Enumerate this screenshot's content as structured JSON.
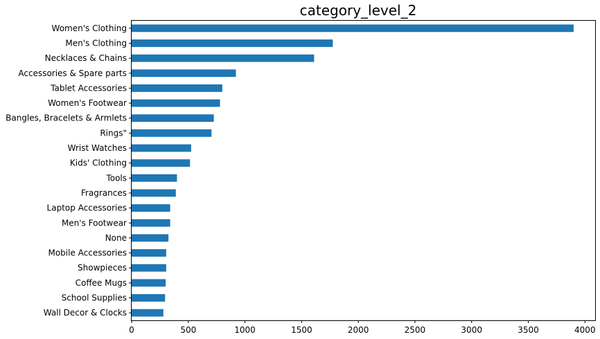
{
  "chart_data": {
    "type": "bar",
    "orientation": "horizontal",
    "title": "category_level_2",
    "xlabel": "",
    "ylabel": "",
    "xlim": [
      0,
      4090
    ],
    "xticks": [
      0,
      500,
      1000,
      1500,
      2000,
      2500,
      3000,
      3500,
      4000
    ],
    "grid": false,
    "bar_color": "#1f77b4",
    "categories": [
      "Women's Clothing",
      "Men's Clothing",
      "Necklaces & Chains",
      "Accessories & Spare parts",
      "Tablet Accessories",
      "Women's Footwear",
      "Bangles, Bracelets & Armlets",
      "Rings\"",
      "Wrist Watches",
      "Kids' Clothing",
      "Tools",
      "Fragrances",
      "Laptop Accessories",
      "Men's Footwear",
      "None",
      "Mobile Accessories",
      "Showpieces",
      "Coffee Mugs",
      "School Supplies",
      "Wall Decor & Clocks"
    ],
    "values": [
      3900,
      1775,
      1610,
      920,
      800,
      780,
      725,
      705,
      525,
      515,
      400,
      390,
      340,
      340,
      325,
      305,
      305,
      300,
      295,
      280
    ]
  }
}
